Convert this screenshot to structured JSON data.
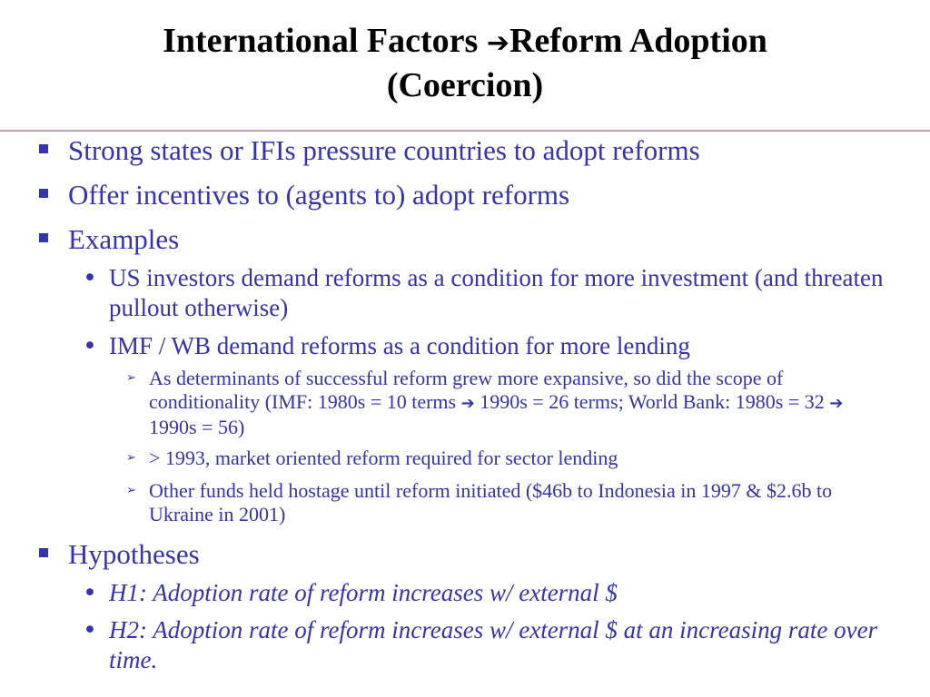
{
  "title": {
    "line1_part1": "International Factors ",
    "arrow": "➔",
    "line1_part2": "Reform Adoption",
    "line2": "(Coercion)"
  },
  "bullets": {
    "b1": "Strong states or IFIs pressure countries to adopt reforms",
    "b2": "Offer incentives to (agents to) adopt reforms",
    "b3": "Examples",
    "b3_1": "US investors demand reforms as a condition for more investment (and threaten pullout otherwise)",
    "b3_2": "IMF / WB demand reforms as a condition for more lending",
    "b3_2_1a": "As determinants of successful reform grew more expansive, so did the scope of conditionality (IMF: 1980s = 10 terms ",
    "arrow": "➔",
    "b3_2_1b": " 1990s = 26 terms; World Bank: 1980s = 32 ",
    "b3_2_1c": " 1990s = 56)",
    "b3_2_2": "> 1993, market oriented reform required for sector lending",
    "b3_2_3": "Other funds held hostage until reform initiated ($46b to Indonesia in 1997 & $2.6b to Ukraine in 2001)",
    "b4": "Hypotheses",
    "b4_1": "H1: Adoption rate of reform increases w/ external $",
    "b4_2": "H2: Adoption rate of reform increases w/ external $ at an increasing rate over time."
  },
  "markers": {
    "level2": "•",
    "level3": "➢"
  },
  "colors": {
    "title": "#000000",
    "body": "#3333b3",
    "rule": "#c8a0a8"
  }
}
